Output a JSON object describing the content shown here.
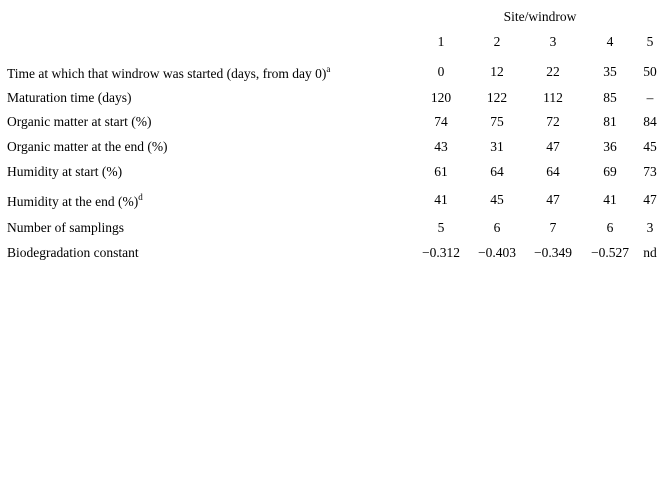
{
  "table": {
    "group_header": "Site/windrow",
    "columns": [
      "1",
      "2",
      "3",
      "4",
      "5"
    ],
    "rows": [
      {
        "label": "Time at which that windrow was started (days, from day 0)",
        "note": "a",
        "cells": [
          "0",
          "12",
          "22",
          "35",
          "50"
        ]
      },
      {
        "label": "Maturation time (days)",
        "cells": [
          "120",
          "122",
          "112",
          "85",
          "–"
        ]
      },
      {
        "label": "Organic matter at start (%)",
        "cells": [
          "74",
          "75",
          "72",
          "81",
          "84"
        ]
      },
      {
        "label": "Organic matter at the end (%)",
        "cells": [
          "43",
          "31",
          "47",
          "36",
          "45"
        ]
      },
      {
        "label": "Humidity at start (%)",
        "cells": [
          "61",
          "64",
          "64",
          "69",
          "73"
        ]
      },
      {
        "label": "Humidity at the end (%)",
        "note": "d",
        "cells": [
          "41",
          "45",
          "47",
          "41",
          "47"
        ]
      },
      {
        "label": "Number of samplings",
        "cells": [
          "5",
          "6",
          "7",
          "6",
          "3"
        ]
      },
      {
        "label": "Biodegradation constant",
        "cells": [
          "−0.312",
          "−0.403",
          "−0.349",
          "−0.527",
          "nd"
        ]
      }
    ]
  }
}
